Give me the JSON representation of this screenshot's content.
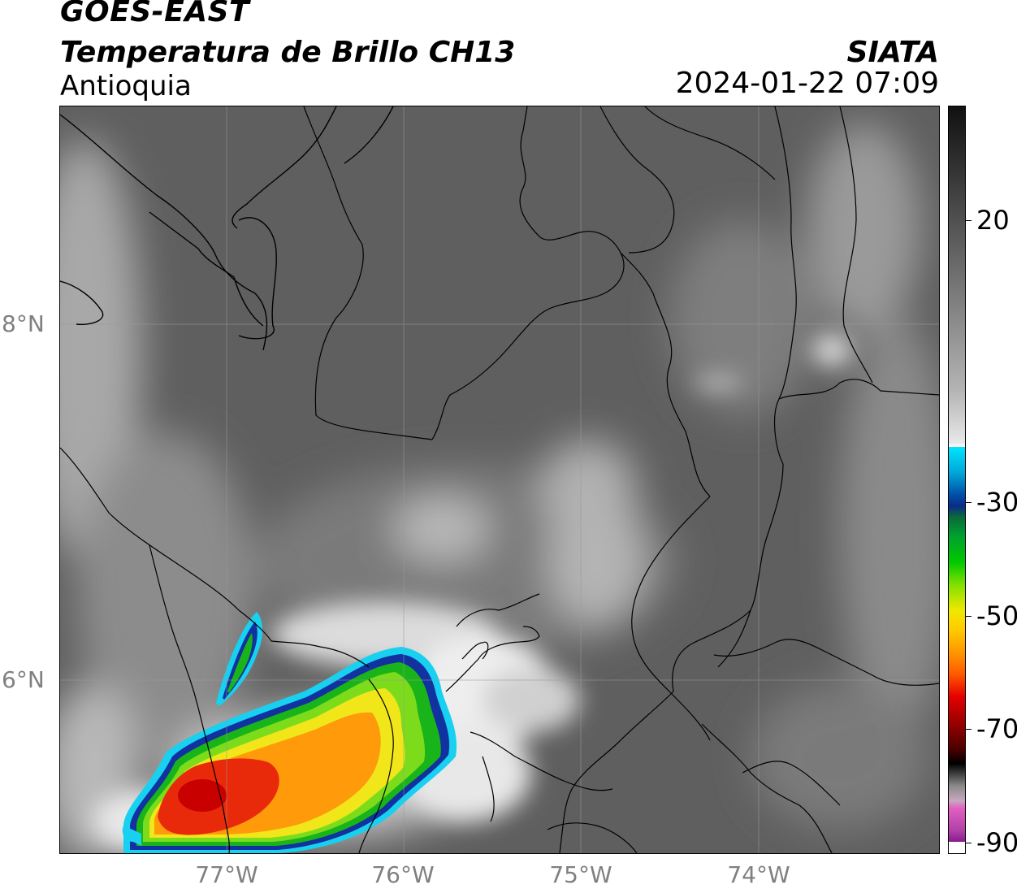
{
  "header": {
    "satellite": "GOES-EAST",
    "product": "Temperatura de Brillo CH13",
    "region": "Antioquia",
    "organization": "SIATA",
    "timestamp": "2024-01-22 07:09"
  },
  "map": {
    "lat_ticks": [
      {
        "label": "8°N",
        "value": 8
      },
      {
        "label": "6°N",
        "value": 6
      }
    ],
    "lon_ticks": [
      {
        "label": "77°W",
        "value": -77
      },
      {
        "label": "76°W",
        "value": -76
      },
      {
        "label": "75°W",
        "value": -75
      },
      {
        "label": "74°W",
        "value": -74
      }
    ],
    "background_color": "#5f5f5f"
  },
  "colorbar": {
    "ticks": [
      {
        "label": "20",
        "value": 20
      },
      {
        "label": "-30",
        "value": -30
      },
      {
        "label": "-50",
        "value": -50
      },
      {
        "label": "-70",
        "value": -70
      },
      {
        "label": "-90",
        "value": -90
      }
    ],
    "colors": {
      "warm_top": "#111111",
      "mid_gray": "#8a8a8a",
      "white": "#ffffff",
      "cyan": "#00e5ff",
      "blue": "#0a2a8a",
      "green": "#00c800",
      "yellow": "#f0e800",
      "orange": "#ff9900",
      "red": "#e60000",
      "dark_red": "#4d0000",
      "black": "#000000",
      "pink": "#e060c0",
      "purple": "#8a1a8a"
    }
  }
}
